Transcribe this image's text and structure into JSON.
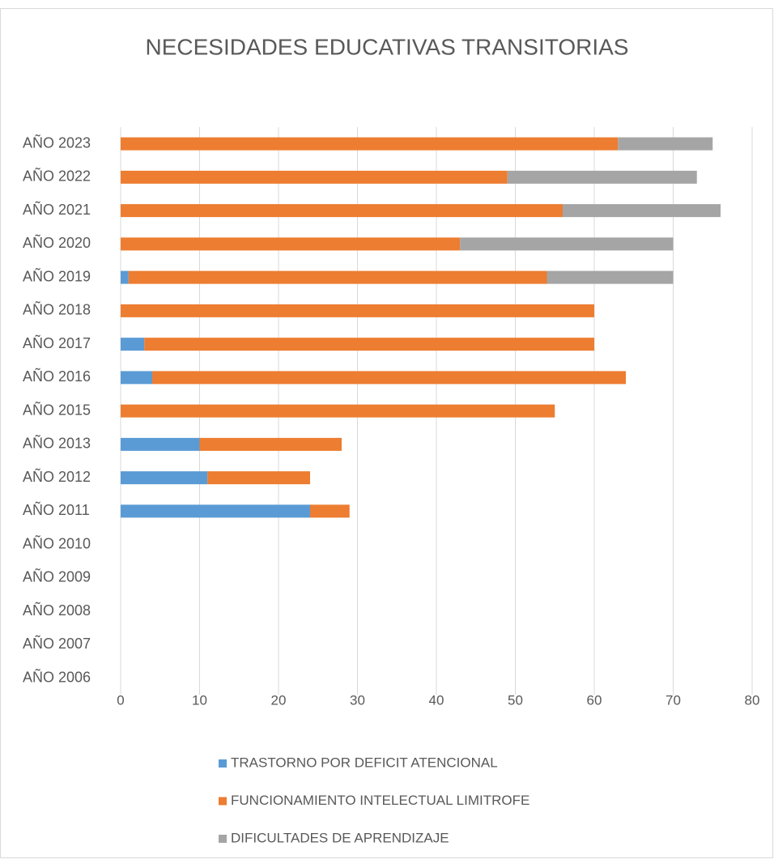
{
  "chart_data": {
    "type": "bar",
    "orientation": "horizontal",
    "stacked": true,
    "title": "NECESIDADES EDUCATIVAS TRANSITORIAS",
    "categories": [
      "AÑO 2023",
      "AÑO 2022",
      "AÑO 2021",
      "AÑO 2020",
      "AÑO 2019",
      "AÑO 2018",
      "AÑO 2017",
      "AÑO 2016",
      "AÑO 2015",
      "AÑO 2013",
      "AÑO 2012",
      "AÑO 2011",
      "AÑO 2010",
      "AÑO 2009",
      "AÑO 2008",
      "AÑO 2007",
      "AÑO 2006"
    ],
    "series": [
      {
        "name": "TRASTORNO POR DEFICIT ATENCIONAL",
        "color": "#5b9bd5",
        "values": [
          null,
          null,
          null,
          null,
          1,
          null,
          3,
          4,
          null,
          10,
          11,
          24,
          null,
          null,
          null,
          null,
          null
        ]
      },
      {
        "name": "FUNCIONAMIENTO INTELECTUAL LIMITROFE",
        "color": "#ed7d31",
        "values": [
          63,
          49,
          56,
          43,
          53,
          60,
          57,
          60,
          55,
          18,
          13,
          5,
          null,
          null,
          null,
          null,
          null
        ]
      },
      {
        "name": "DIFICULTADES DE APRENDIZAJE",
        "color": "#a5a5a5",
        "values": [
          12,
          24,
          20,
          27,
          16,
          null,
          null,
          null,
          null,
          null,
          null,
          null,
          null,
          null,
          null,
          null,
          null
        ]
      }
    ],
    "xlim": [
      0,
      80
    ],
    "xticks": [
      0,
      10,
      20,
      30,
      40,
      50,
      60,
      70,
      80
    ],
    "grid": true,
    "legend": "bottom"
  }
}
